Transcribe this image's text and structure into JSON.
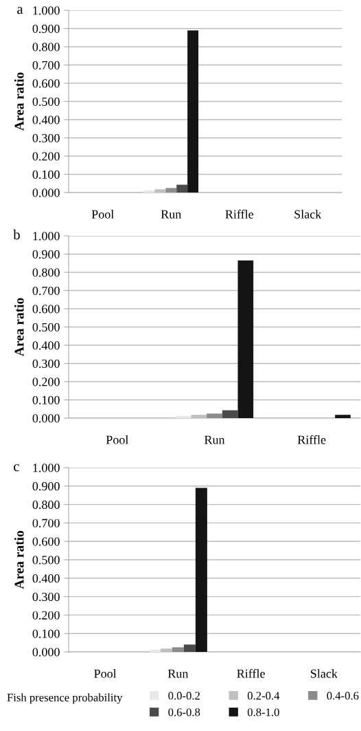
{
  "chart_data": [
    {
      "type": "bar",
      "title": "a",
      "ylabel": "Area ratio",
      "categories": [
        "Pool",
        "Run",
        "Riffle",
        "Slack"
      ],
      "series": [
        {
          "color": "#e8e8e8",
          "values": [
            null,
            0.012,
            null,
            null
          ]
        },
        {
          "color": "#c0c0c0",
          "values": [
            null,
            0.018,
            null,
            null
          ]
        },
        {
          "color": "#8c8c8c",
          "values": [
            null,
            0.025,
            null,
            null
          ]
        },
        {
          "color": "#4a4a4a",
          "values": [
            null,
            0.043,
            null,
            null
          ]
        },
        {
          "color": "#141414",
          "values": [
            null,
            0.89,
            null,
            null
          ]
        }
      ],
      "ylim": [
        0,
        1
      ],
      "yticks": [
        {
          "value": 0,
          "label": "0.000"
        },
        {
          "value": 0.1,
          "label": "0.100"
        },
        {
          "value": 0.2,
          "label": "0.200"
        },
        {
          "value": 0.3,
          "label": "0.300"
        },
        {
          "value": 0.4,
          "label": "0.400"
        },
        {
          "value": 0.5,
          "label": "0.500"
        },
        {
          "value": 0.6,
          "label": "0.600"
        },
        {
          "value": 0.7,
          "label": "0.700"
        },
        {
          "value": 0.8,
          "label": "0.800"
        },
        {
          "value": 0.9,
          "label": "0.900"
        },
        {
          "value": 1,
          "label": "1.000"
        }
      ],
      "grid": "y"
    },
    {
      "type": "bar",
      "title": "b",
      "ylabel": "Area ratio",
      "categories": [
        "Pool",
        "Run",
        "Riffle"
      ],
      "series": [
        {
          "color": "#e8e8e8",
          "values": [
            null,
            0.012,
            null
          ]
        },
        {
          "color": "#c0c0c0",
          "values": [
            null,
            0.018,
            null
          ]
        },
        {
          "color": "#8c8c8c",
          "values": [
            null,
            0.025,
            null
          ]
        },
        {
          "color": "#4a4a4a",
          "values": [
            null,
            0.043,
            null
          ]
        },
        {
          "color": "#141414",
          "values": [
            null,
            0.865,
            0.018
          ]
        }
      ],
      "ylim": [
        0,
        1
      ],
      "yticks": [
        {
          "value": 0,
          "label": "0.000"
        },
        {
          "value": 0.1,
          "label": "0.100"
        },
        {
          "value": 0.2,
          "label": "0.200"
        },
        {
          "value": 0.3,
          "label": "0.300"
        },
        {
          "value": 0.4,
          "label": "0.400"
        },
        {
          "value": 0.5,
          "label": "0.500"
        },
        {
          "value": 0.6,
          "label": "0.600"
        },
        {
          "value": 0.7,
          "label": "0.700"
        },
        {
          "value": 0.8,
          "label": "0.800"
        },
        {
          "value": 0.9,
          "label": "0.900"
        },
        {
          "value": 1,
          "label": "1.000"
        }
      ],
      "grid": "y"
    },
    {
      "type": "bar",
      "title": "c",
      "ylabel": "Area ratio",
      "categories": [
        "Pool",
        "Run",
        "Riffle",
        "Slack"
      ],
      "legend_title": "Fish presence probability",
      "legend": "bottom",
      "series": [
        {
          "name": "0.0-0.2",
          "color": "#e8e8e8",
          "values": [
            null,
            0.012,
            null,
            null
          ]
        },
        {
          "name": "0.2-0.4",
          "color": "#c0c0c0",
          "values": [
            null,
            0.018,
            null,
            null
          ]
        },
        {
          "name": "0.4-0.6",
          "color": "#8c8c8c",
          "values": [
            null,
            0.025,
            null,
            null
          ]
        },
        {
          "name": "0.6-0.8",
          "color": "#4a4a4a",
          "values": [
            null,
            0.04,
            null,
            null
          ]
        },
        {
          "name": "0.8-1.0",
          "color": "#141414",
          "values": [
            null,
            0.89,
            null,
            null
          ]
        }
      ],
      "ylim": [
        0,
        1
      ],
      "yticks": [
        {
          "value": 0,
          "label": "0.000"
        },
        {
          "value": 0.1,
          "label": "0.100"
        },
        {
          "value": 0.2,
          "label": "0.200"
        },
        {
          "value": 0.3,
          "label": "0.300"
        },
        {
          "value": 0.4,
          "label": "0.400"
        },
        {
          "value": 0.5,
          "label": "0.500"
        },
        {
          "value": 0.6,
          "label": "0.600"
        },
        {
          "value": 0.7,
          "label": "0.700"
        },
        {
          "value": 0.8,
          "label": "0.800"
        },
        {
          "value": 0.9,
          "label": "0.900"
        },
        {
          "value": 1,
          "label": "1.000"
        }
      ],
      "grid": "y"
    }
  ]
}
